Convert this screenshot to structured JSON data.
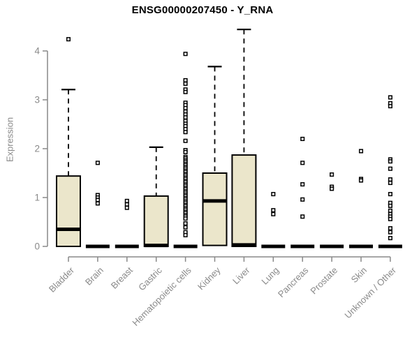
{
  "chart_data": {
    "type": "boxplot",
    "title": "ENSG00000207450 - Y_RNA",
    "ylabel": "Expression",
    "xlabel": "",
    "ylim": [
      0,
      4
    ],
    "yticks": [
      "0",
      "1",
      "2",
      "3",
      "4"
    ],
    "grid": false,
    "legend": "none",
    "colors": {
      "box_fill": "#ebe6cb",
      "box_border": "#000000",
      "median": "#000000",
      "whisker": "#000000",
      "outlier": "#000000",
      "axis": "#888888",
      "tick_label": "#8a8a8a",
      "title": "#000000",
      "background": "#ffffff"
    },
    "categories": [
      "Bladder",
      "Brain",
      "Breast",
      "Gastric",
      "Hematopoietic cells",
      "Kidney",
      "Liver",
      "Lung",
      "Pancreas",
      "Prostate",
      "Skin",
      "Unknown / Other"
    ],
    "series": [
      {
        "category": "Bladder",
        "q1": 0,
        "median": 0.35,
        "q3": 1.44,
        "whisker_low": 0,
        "whisker_high": 3.21,
        "outliers": [
          4.24
        ]
      },
      {
        "category": "Brain",
        "q1": 0,
        "median": 0,
        "q3": 0,
        "whisker_low": 0,
        "whisker_high": 0,
        "outliers": [
          1.71,
          1.05,
          1.0,
          0.95,
          0.88
        ]
      },
      {
        "category": "Breast",
        "q1": 0,
        "median": 0,
        "q3": 0,
        "whisker_low": 0,
        "whisker_high": 0,
        "outliers": [
          0.93,
          0.86,
          0.79
        ]
      },
      {
        "category": "Gastric",
        "q1": 0,
        "median": 0.02,
        "q3": 1.03,
        "whisker_low": 0,
        "whisker_high": 2.03,
        "outliers": []
      },
      {
        "category": "Hematopoietic cells",
        "q1": 0,
        "median": 0,
        "q3": 0,
        "whisker_low": 0,
        "whisker_high": 0,
        "outliers": [
          3.94,
          3.4,
          3.33,
          3.21,
          3.16,
          2.94,
          2.89,
          2.83,
          2.76,
          2.7,
          2.64,
          2.57,
          2.51,
          2.46,
          2.4,
          2.34,
          2.16,
          1.97,
          1.93,
          1.83,
          1.8,
          1.76,
          1.73,
          1.69,
          1.66,
          1.62,
          1.59,
          1.55,
          1.52,
          1.48,
          1.45,
          1.41,
          1.38,
          1.34,
          1.31,
          1.27,
          1.24,
          1.2,
          1.17,
          1.13,
          1.1,
          1.06,
          1.03,
          0.99,
          0.96,
          0.92,
          0.89,
          0.85,
          0.82,
          0.78,
          0.75,
          0.71,
          0.68,
          0.64,
          0.61,
          0.57,
          0.47,
          0.39,
          0.29,
          0.23
        ]
      },
      {
        "category": "Kidney",
        "q1": 0.02,
        "median": 0.93,
        "q3": 1.5,
        "whisker_low": 0.02,
        "whisker_high": 3.68,
        "outliers": []
      },
      {
        "category": "Liver",
        "q1": 0,
        "median": 0.03,
        "q3": 1.87,
        "whisker_low": 0,
        "whisker_high": 4.44,
        "outliers": []
      },
      {
        "category": "Lung",
        "q1": 0,
        "median": 0,
        "q3": 0,
        "whisker_low": 0,
        "whisker_high": 0,
        "outliers": [
          1.07,
          0.74,
          0.66
        ]
      },
      {
        "category": "Pancreas",
        "q1": 0,
        "median": 0,
        "q3": 0,
        "whisker_low": 0,
        "whisker_high": 0,
        "outliers": [
          2.2,
          1.71,
          1.27,
          0.96,
          0.61
        ]
      },
      {
        "category": "Prostate",
        "q1": 0,
        "median": 0,
        "q3": 0,
        "whisker_low": 0,
        "whisker_high": 0,
        "outliers": [
          1.47,
          1.22,
          1.18
        ]
      },
      {
        "category": "Skin",
        "q1": 0,
        "median": 0,
        "q3": 0,
        "whisker_low": 0,
        "whisker_high": 0,
        "outliers": [
          1.95,
          1.38,
          1.35
        ]
      },
      {
        "category": "Unknown / Other",
        "q1": 0,
        "median": 0,
        "q3": 0,
        "whisker_low": 0,
        "whisker_high": 0,
        "outliers": [
          3.05,
          2.93,
          2.87,
          1.78,
          1.74,
          1.59,
          1.37,
          1.3,
          1.07,
          0.89,
          0.83,
          0.73,
          0.66,
          0.61,
          0.56,
          0.37,
          0.29,
          0.17
        ]
      }
    ]
  }
}
